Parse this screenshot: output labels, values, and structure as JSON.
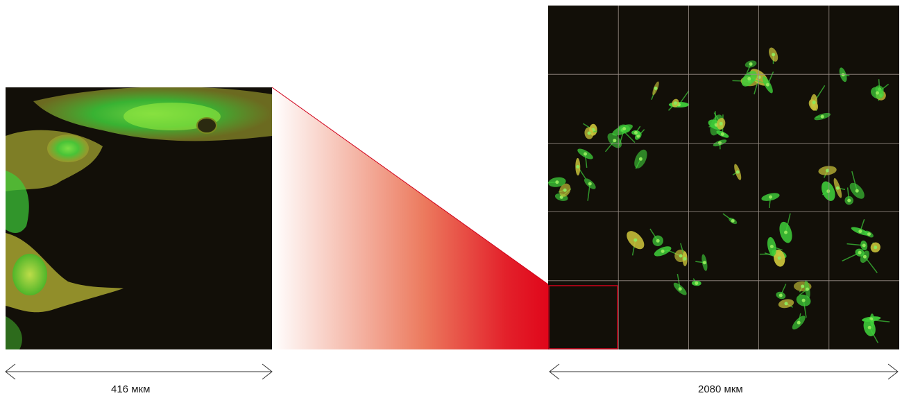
{
  "zoom_view": {
    "scale_text": "416 мкм"
  },
  "overview": {
    "scale_text": "2080 мкм",
    "grid": {
      "rows": 5,
      "cols": 5
    }
  },
  "colors": {
    "highlight_red": "#d0021b",
    "background_dark": "#120f08",
    "cell_green": "#3fcf3a",
    "cell_yellow": "#c9c23a",
    "grid_line": "#9a8f88",
    "arrow_line": "#333333"
  }
}
